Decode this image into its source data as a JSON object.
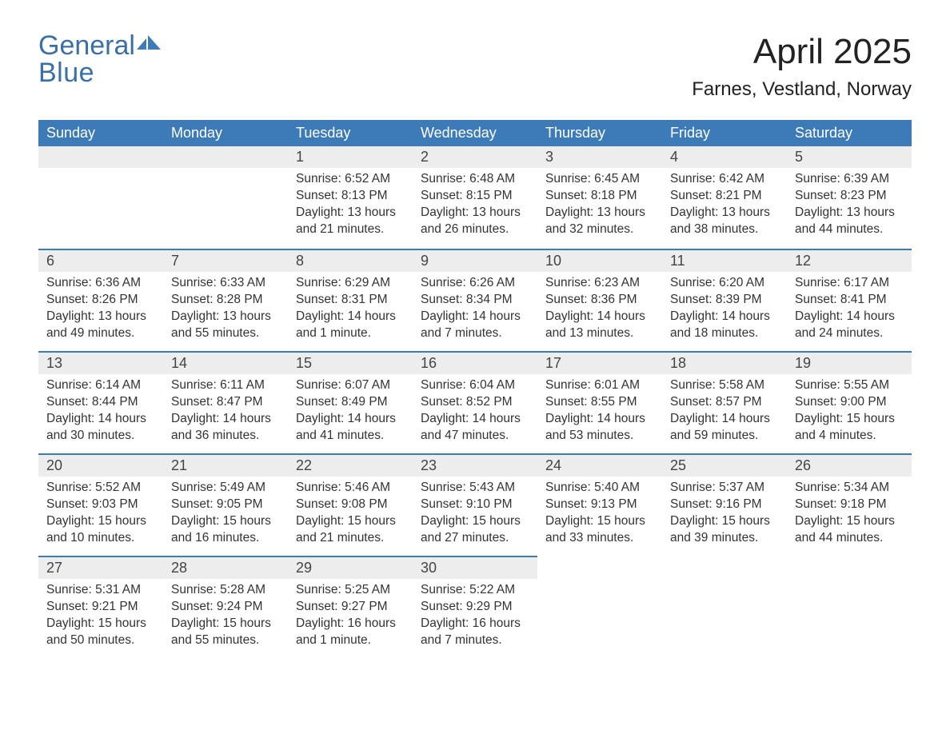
{
  "logo": {
    "word1": "General",
    "word2": "Blue",
    "icon_color": "#3d7ab8",
    "text_color": "#3a6fa8"
  },
  "title": "April 2025",
  "location": "Farnes, Vestland, Norway",
  "colors": {
    "header_bg": "#3d7ab8",
    "header_text": "#ffffff",
    "daynum_bg": "#ededed",
    "row_divider": "#3d7ab8",
    "body_text": "#333333",
    "page_bg": "#ffffff"
  },
  "typography": {
    "title_fontsize": 44,
    "location_fontsize": 24,
    "dayheader_fontsize": 18,
    "daynum_fontsize": 18,
    "cell_fontsize": 15.5,
    "font_family": "Arial"
  },
  "layout": {
    "columns": 7,
    "rows": 5,
    "start_day_index": 2
  },
  "day_headers": [
    "Sunday",
    "Monday",
    "Tuesday",
    "Wednesday",
    "Thursday",
    "Friday",
    "Saturday"
  ],
  "days": [
    {
      "num": 1,
      "sunrise": "6:52 AM",
      "sunset": "8:13 PM",
      "daylight": "13 hours and 21 minutes."
    },
    {
      "num": 2,
      "sunrise": "6:48 AM",
      "sunset": "8:15 PM",
      "daylight": "13 hours and 26 minutes."
    },
    {
      "num": 3,
      "sunrise": "6:45 AM",
      "sunset": "8:18 PM",
      "daylight": "13 hours and 32 minutes."
    },
    {
      "num": 4,
      "sunrise": "6:42 AM",
      "sunset": "8:21 PM",
      "daylight": "13 hours and 38 minutes."
    },
    {
      "num": 5,
      "sunrise": "6:39 AM",
      "sunset": "8:23 PM",
      "daylight": "13 hours and 44 minutes."
    },
    {
      "num": 6,
      "sunrise": "6:36 AM",
      "sunset": "8:26 PM",
      "daylight": "13 hours and 49 minutes."
    },
    {
      "num": 7,
      "sunrise": "6:33 AM",
      "sunset": "8:28 PM",
      "daylight": "13 hours and 55 minutes."
    },
    {
      "num": 8,
      "sunrise": "6:29 AM",
      "sunset": "8:31 PM",
      "daylight": "14 hours and 1 minute."
    },
    {
      "num": 9,
      "sunrise": "6:26 AM",
      "sunset": "8:34 PM",
      "daylight": "14 hours and 7 minutes."
    },
    {
      "num": 10,
      "sunrise": "6:23 AM",
      "sunset": "8:36 PM",
      "daylight": "14 hours and 13 minutes."
    },
    {
      "num": 11,
      "sunrise": "6:20 AM",
      "sunset": "8:39 PM",
      "daylight": "14 hours and 18 minutes."
    },
    {
      "num": 12,
      "sunrise": "6:17 AM",
      "sunset": "8:41 PM",
      "daylight": "14 hours and 24 minutes."
    },
    {
      "num": 13,
      "sunrise": "6:14 AM",
      "sunset": "8:44 PM",
      "daylight": "14 hours and 30 minutes."
    },
    {
      "num": 14,
      "sunrise": "6:11 AM",
      "sunset": "8:47 PM",
      "daylight": "14 hours and 36 minutes."
    },
    {
      "num": 15,
      "sunrise": "6:07 AM",
      "sunset": "8:49 PM",
      "daylight": "14 hours and 41 minutes."
    },
    {
      "num": 16,
      "sunrise": "6:04 AM",
      "sunset": "8:52 PM",
      "daylight": "14 hours and 47 minutes."
    },
    {
      "num": 17,
      "sunrise": "6:01 AM",
      "sunset": "8:55 PM",
      "daylight": "14 hours and 53 minutes."
    },
    {
      "num": 18,
      "sunrise": "5:58 AM",
      "sunset": "8:57 PM",
      "daylight": "14 hours and 59 minutes."
    },
    {
      "num": 19,
      "sunrise": "5:55 AM",
      "sunset": "9:00 PM",
      "daylight": "15 hours and 4 minutes."
    },
    {
      "num": 20,
      "sunrise": "5:52 AM",
      "sunset": "9:03 PM",
      "daylight": "15 hours and 10 minutes."
    },
    {
      "num": 21,
      "sunrise": "5:49 AM",
      "sunset": "9:05 PM",
      "daylight": "15 hours and 16 minutes."
    },
    {
      "num": 22,
      "sunrise": "5:46 AM",
      "sunset": "9:08 PM",
      "daylight": "15 hours and 21 minutes."
    },
    {
      "num": 23,
      "sunrise": "5:43 AM",
      "sunset": "9:10 PM",
      "daylight": "15 hours and 27 minutes."
    },
    {
      "num": 24,
      "sunrise": "5:40 AM",
      "sunset": "9:13 PM",
      "daylight": "15 hours and 33 minutes."
    },
    {
      "num": 25,
      "sunrise": "5:37 AM",
      "sunset": "9:16 PM",
      "daylight": "15 hours and 39 minutes."
    },
    {
      "num": 26,
      "sunrise": "5:34 AM",
      "sunset": "9:18 PM",
      "daylight": "15 hours and 44 minutes."
    },
    {
      "num": 27,
      "sunrise": "5:31 AM",
      "sunset": "9:21 PM",
      "daylight": "15 hours and 50 minutes."
    },
    {
      "num": 28,
      "sunrise": "5:28 AM",
      "sunset": "9:24 PM",
      "daylight": "15 hours and 55 minutes."
    },
    {
      "num": 29,
      "sunrise": "5:25 AM",
      "sunset": "9:27 PM",
      "daylight": "16 hours and 1 minute."
    },
    {
      "num": 30,
      "sunrise": "5:22 AM",
      "sunset": "9:29 PM",
      "daylight": "16 hours and 7 minutes."
    }
  ],
  "labels": {
    "sunrise": "Sunrise:",
    "sunset": "Sunset:",
    "daylight": "Daylight:"
  }
}
